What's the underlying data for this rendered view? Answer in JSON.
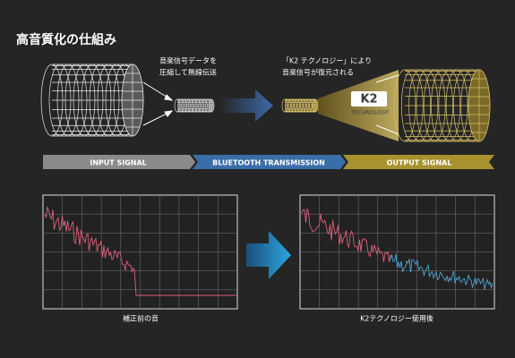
{
  "header": {
    "title": "高音質化の仕組み"
  },
  "diagram": {
    "caption_compress": [
      "音楽信号データを",
      "圧縮して無線伝送"
    ],
    "caption_restore": [
      "「K2 テクノロジー」により",
      "音楽信号が復元される"
    ],
    "badge": {
      "logo": "K2",
      "text": "TECHNOLOGY"
    },
    "stages": [
      "INPUT SIGNAL",
      "BLUETOOTH TRANSMISSION",
      "OUTPUT SIGNAL"
    ]
  },
  "graphs": [
    {
      "caption": "補正前の音"
    },
    {
      "caption": "K2テクノロジー使用後"
    }
  ]
}
